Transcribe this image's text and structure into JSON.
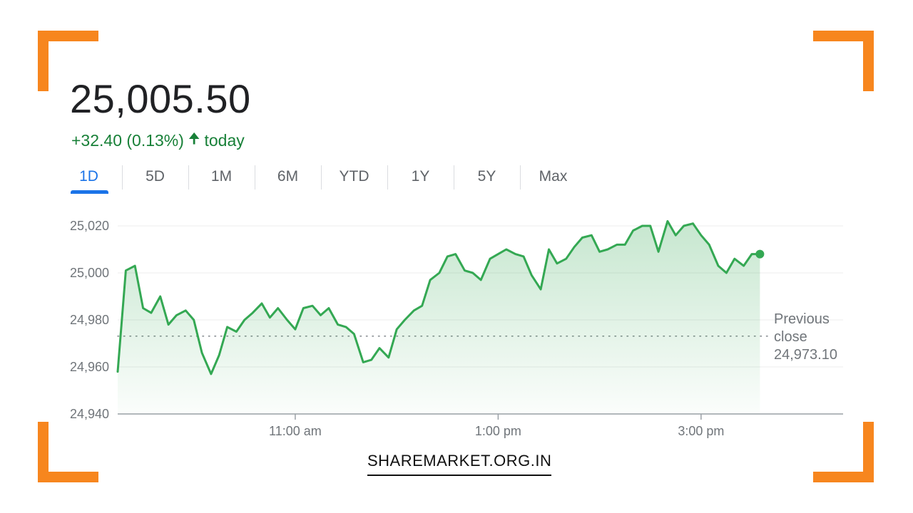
{
  "quote": {
    "price": "25,005.50",
    "change": "+32.40 (0.13%)",
    "change_arrow": "arrow-up-icon",
    "change_suffix": "today"
  },
  "tabs": [
    "1D",
    "5D",
    "1M",
    "6M",
    "YTD",
    "1Y",
    "5Y",
    "Max"
  ],
  "active_tab": "1D",
  "footer": {
    "brand": "SHAREMARKET.ORG.IN"
  },
  "colors": {
    "accent": "#1a73e8",
    "up": "#188038",
    "line": "#34a853",
    "corner": "#f7861e"
  },
  "chart_data": {
    "type": "area",
    "ylim": [
      24940,
      25020
    ],
    "y_ticks": [
      "25,020",
      "25,000",
      "24,980",
      "24,960",
      "24,940"
    ],
    "y_tick_values": [
      25020,
      25000,
      24980,
      24960,
      24940
    ],
    "x_ticks": [
      "11:00 am",
      "1:00 pm",
      "3:00 pm"
    ],
    "x_tick_values": [
      11.0,
      13.0,
      15.0
    ],
    "xlim": [
      9.25,
      16.4
    ],
    "previous_close": {
      "label": [
        "Previous",
        "close"
      ],
      "value": 24973.1,
      "value_label": "24,973.10"
    },
    "series": [
      {
        "x": [
          9.25,
          9.33,
          9.42,
          9.5,
          9.58,
          9.67,
          9.75,
          9.83,
          9.92,
          10.0,
          10.08,
          10.17,
          10.25,
          10.33,
          10.42,
          10.5,
          10.58,
          10.67,
          10.75,
          10.83,
          10.92,
          11.0,
          11.08,
          11.17,
          11.25,
          11.33,
          11.42,
          11.5,
          11.58,
          11.67,
          11.75,
          11.83,
          11.92,
          12.0,
          12.08,
          12.17,
          12.25,
          12.33,
          12.42,
          12.5,
          12.58,
          12.67,
          12.75,
          12.83,
          12.92,
          13.0,
          13.08,
          13.17,
          13.25,
          13.33,
          13.42,
          13.5,
          13.58,
          13.67,
          13.75,
          13.83,
          13.92,
          14.0,
          14.08,
          14.17,
          14.25,
          14.33,
          14.42,
          14.5,
          14.58,
          14.67,
          14.75,
          14.83,
          14.92,
          15.0,
          15.08,
          15.17,
          15.25,
          15.33,
          15.42,
          15.5,
          15.58
        ],
        "y": [
          24958,
          25001,
          25003,
          24985,
          24983,
          24990,
          24978,
          24982,
          24984,
          24980,
          24966,
          24957,
          24965,
          24977,
          24975,
          24980,
          24983,
          24987,
          24981,
          24985,
          24980,
          24976,
          24985,
          24986,
          24982,
          24985,
          24978,
          24977,
          24974,
          24962,
          24963,
          24968,
          24964,
          24976,
          24980,
          24984,
          24986,
          24997,
          25000,
          25007,
          25008,
          25001,
          25000,
          24997,
          25006,
          25008,
          25010,
          25008,
          25007,
          24999,
          24993,
          25010,
          25004,
          25006,
          25011,
          25015,
          25016,
          25009,
          25010,
          25012,
          25012,
          25018,
          25020,
          25020,
          25009,
          25022,
          25016,
          25020,
          25021,
          25016,
          25012,
          25003,
          25000,
          25006,
          25003,
          25008,
          25008
        ]
      }
    ]
  }
}
